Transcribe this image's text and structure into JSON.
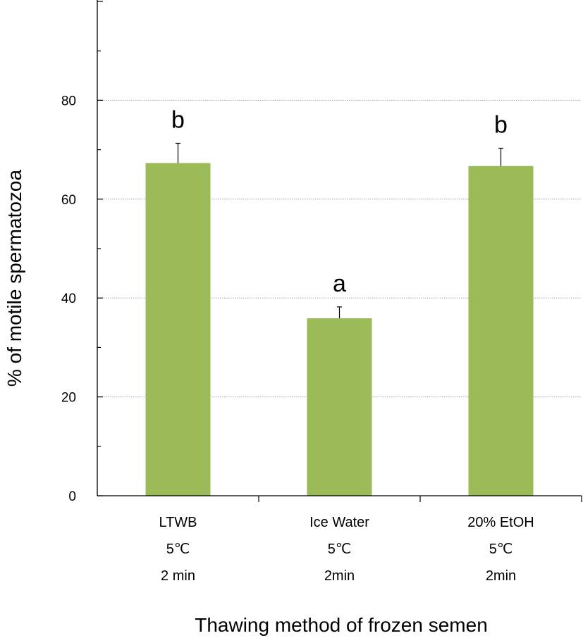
{
  "chart_data": {
    "type": "bar",
    "title": "",
    "xlabel": "Thawing method of frozen semen",
    "ylabel": "% of motile spermatozoa",
    "ylim": [
      0,
      100
    ],
    "yticks": [
      0,
      20,
      40,
      60,
      80
    ],
    "ytick_labels": [
      "0",
      "20",
      "40",
      "60",
      "80"
    ],
    "grid": "horizontal dotted at 20, 40, 60, 80",
    "legend": "none",
    "categories": [
      [
        "LTWB",
        "5℃",
        "2 min"
      ],
      [
        "Ice Water",
        "5℃",
        "2min"
      ],
      [
        "20% EtOH",
        "5℃",
        "2min"
      ]
    ],
    "values": [
      67.3,
      35.9,
      66.7
    ],
    "error_upper": [
      4.0,
      2.3,
      3.6
    ],
    "significance_labels": [
      "b",
      "a",
      "b"
    ],
    "colors": {
      "bar": "#9bbb59",
      "axis": "#000000",
      "grid": "#a6a6a6"
    }
  }
}
